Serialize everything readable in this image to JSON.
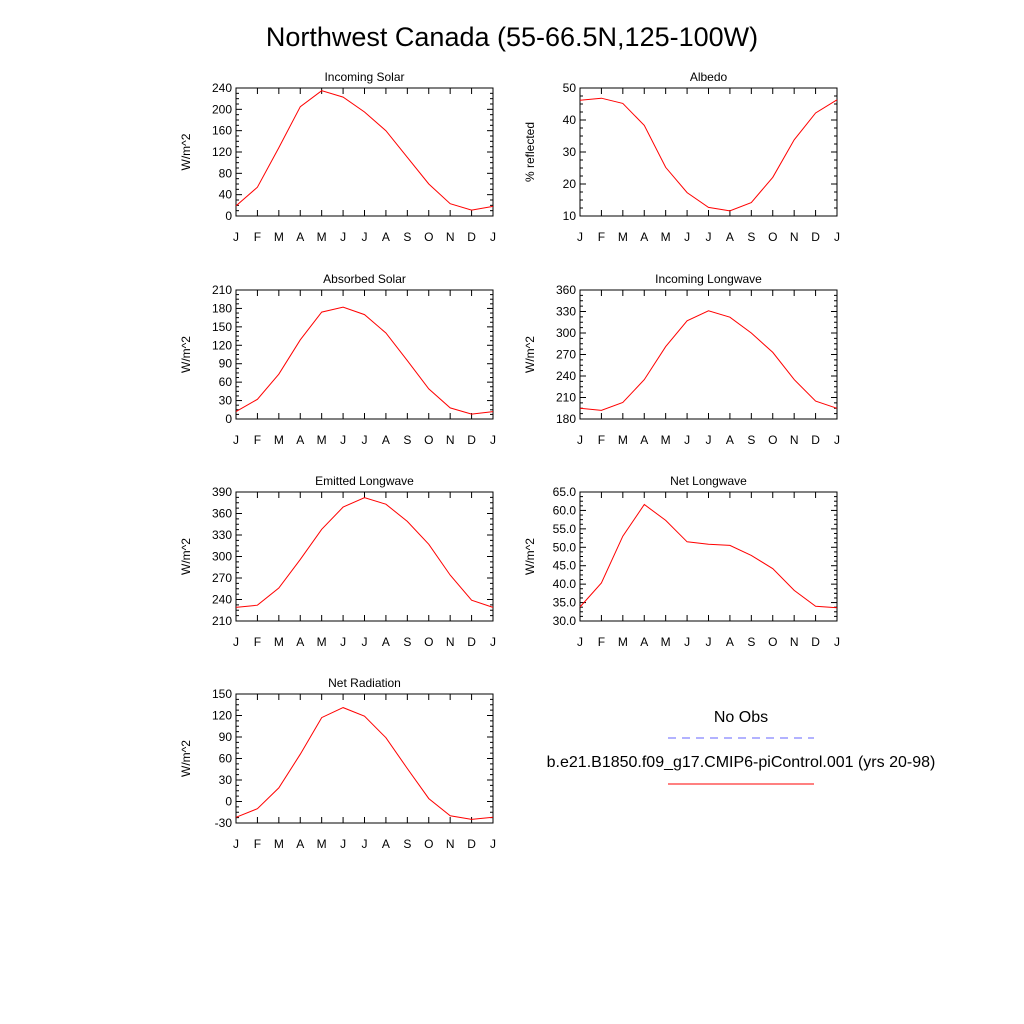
{
  "figure": {
    "title": "Northwest Canada (55-66.5N,125-100W)"
  },
  "legend": {
    "obs_label": "No Obs",
    "obs_color": "#6666ff",
    "model_label": "b.e21.B1850.f09_g17.CMIP6-piControl.001 (yrs 20-98)",
    "model_color": "#ff0000"
  },
  "chart_data": [
    {
      "type": "line",
      "title": "Incoming Solar",
      "ylabel": "W/m^2",
      "x": [
        "J",
        "F",
        "M",
        "A",
        "M",
        "J",
        "J",
        "A",
        "S",
        "O",
        "N",
        "D",
        "J"
      ],
      "ylim": [
        0,
        240
      ],
      "yticks": [
        "0",
        "40",
        "80",
        "120",
        "160",
        "200",
        "240"
      ],
      "series": [
        {
          "values": [
            19,
            54,
            128,
            205,
            235,
            223,
            195,
            160,
            110,
            60,
            23,
            11,
            18
          ],
          "color": "#ff0000"
        }
      ]
    },
    {
      "type": "line",
      "title": "Albedo",
      "ylabel": "% reflected",
      "x": [
        "J",
        "F",
        "M",
        "A",
        "M",
        "J",
        "J",
        "A",
        "S",
        "O",
        "N",
        "D",
        "J"
      ],
      "ylim": [
        10,
        50
      ],
      "yticks": [
        "10",
        "20",
        "30",
        "40",
        "50"
      ],
      "series": [
        {
          "values": [
            46.2,
            46.8,
            45.2,
            38.3,
            25.2,
            17.3,
            12.7,
            11.6,
            14.2,
            22.1,
            33.8,
            42.2,
            46.3
          ],
          "color": "#ff0000"
        }
      ]
    },
    {
      "type": "line",
      "title": "Absorbed Solar",
      "ylabel": "W/m^2",
      "x": [
        "J",
        "F",
        "M",
        "A",
        "M",
        "J",
        "J",
        "A",
        "S",
        "O",
        "N",
        "D",
        "J"
      ],
      "ylim": [
        0,
        210
      ],
      "yticks": [
        "0",
        "30",
        "60",
        "90",
        "120",
        "150",
        "180",
        "210"
      ],
      "series": [
        {
          "values": [
            12,
            32,
            73,
            129,
            174,
            182,
            170,
            140,
            95,
            49,
            18,
            8,
            12
          ],
          "color": "#ff0000"
        }
      ]
    },
    {
      "type": "line",
      "title": "Incoming Longwave",
      "ylabel": "W/m^2",
      "x": [
        "J",
        "F",
        "M",
        "A",
        "M",
        "J",
        "J",
        "A",
        "S",
        "O",
        "N",
        "D",
        "J"
      ],
      "ylim": [
        180,
        360
      ],
      "yticks": [
        "180",
        "210",
        "240",
        "270",
        "300",
        "330",
        "360"
      ],
      "series": [
        {
          "values": [
            195,
            192,
            203,
            235,
            281,
            317,
            331,
            322,
            300,
            273,
            235,
            205,
            195
          ],
          "color": "#ff0000"
        }
      ]
    },
    {
      "type": "line",
      "title": "Emitted Longwave",
      "ylabel": "W/m^2",
      "x": [
        "J",
        "F",
        "M",
        "A",
        "M",
        "J",
        "J",
        "A",
        "S",
        "O",
        "N",
        "D",
        "J"
      ],
      "ylim": [
        210,
        390
      ],
      "yticks": [
        "210",
        "240",
        "270",
        "300",
        "330",
        "360",
        "390"
      ],
      "series": [
        {
          "values": [
            229,
            232,
            256,
            296,
            338,
            369,
            382,
            373,
            349,
            317,
            274,
            239,
            229
          ],
          "color": "#ff0000"
        }
      ]
    },
    {
      "type": "line",
      "title": "Net Longwave",
      "ylabel": "W/m^2",
      "x": [
        "J",
        "F",
        "M",
        "A",
        "M",
        "J",
        "J",
        "A",
        "S",
        "O",
        "N",
        "D",
        "J"
      ],
      "ylim": [
        30,
        65
      ],
      "yticks": [
        "30.0",
        "35.0",
        "40.0",
        "45.0",
        "50.0",
        "55.0",
        "60.0",
        "65.0"
      ],
      "series": [
        {
          "values": [
            33.8,
            40.3,
            53.0,
            61.6,
            57.3,
            51.5,
            50.8,
            50.5,
            47.8,
            44.2,
            38.3,
            34.0,
            33.6
          ],
          "color": "#ff0000"
        }
      ]
    },
    {
      "type": "line",
      "title": "Net Radiation",
      "ylabel": "W/m^2",
      "x": [
        "J",
        "F",
        "M",
        "A",
        "M",
        "J",
        "J",
        "A",
        "S",
        "O",
        "N",
        "D",
        "J"
      ],
      "ylim": [
        -30,
        150
      ],
      "yticks": [
        "-30",
        "0",
        "30",
        "60",
        "90",
        "120",
        "150"
      ],
      "series": [
        {
          "values": [
            -22,
            -10,
            19,
            66,
            117,
            131,
            119,
            89,
            46,
            4,
            -20,
            -25,
            -22
          ],
          "color": "#ff0000"
        }
      ]
    }
  ]
}
